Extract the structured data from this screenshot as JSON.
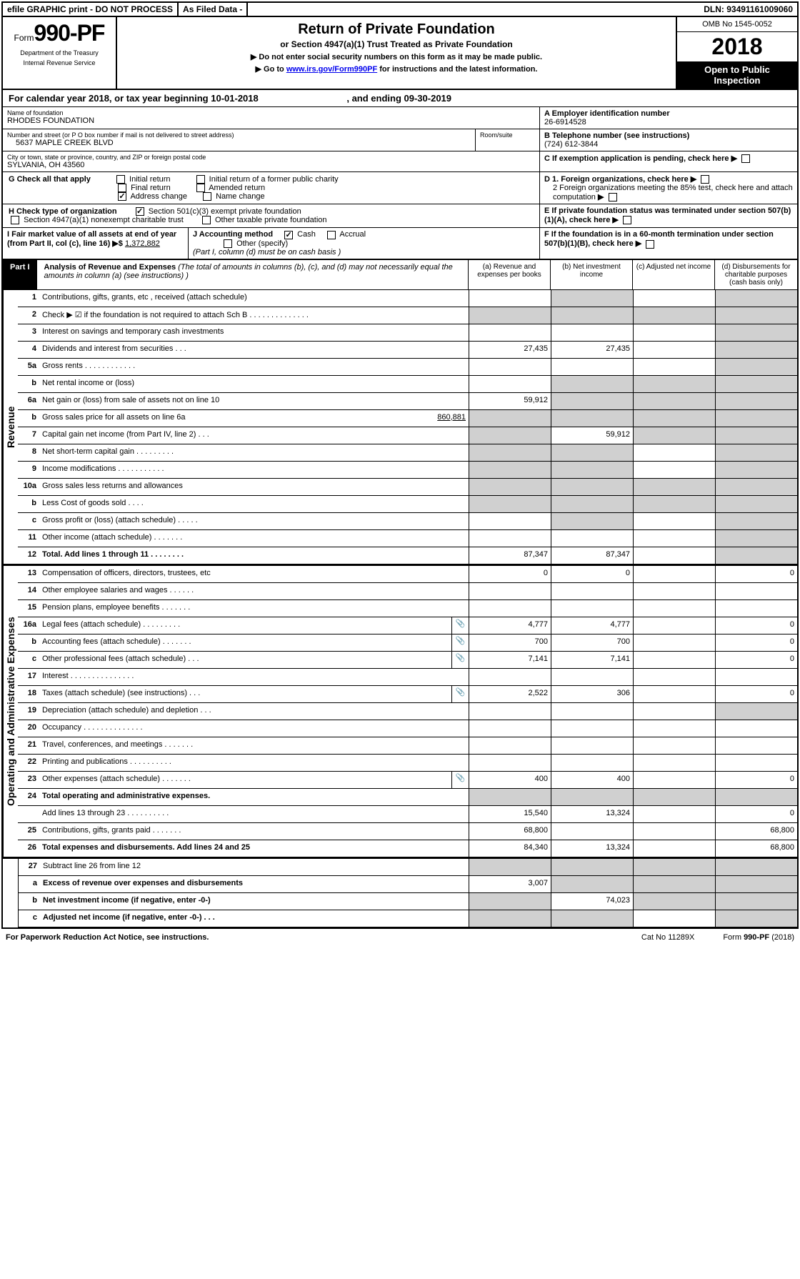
{
  "topbar": {
    "efile": "efile GRAPHIC print - DO NOT PROCESS",
    "asfiled": "As Filed Data -",
    "dln_label": "DLN:",
    "dln": "93491161009060"
  },
  "header": {
    "form_prefix": "Form",
    "form_no": "990-PF",
    "dept1": "Department of the Treasury",
    "dept2": "Internal Revenue Service",
    "title": "Return of Private Foundation",
    "subtitle": "or Section 4947(a)(1) Trust Treated as Private Foundation",
    "warn1": "▶ Do not enter social security numbers on this form as it may be made public.",
    "warn2_pre": "▶ Go to ",
    "warn2_link": "www.irs.gov/Form990PF",
    "warn2_post": " for instructions and the latest information.",
    "omb": "OMB No 1545-0052",
    "year": "2018",
    "opentag": "Open to Public Inspection"
  },
  "calyear": {
    "text_pre": "For calendar year 2018, or tax year beginning ",
    "begin": "10-01-2018",
    "mid": " , and ending ",
    "end": "09-30-2019"
  },
  "id": {
    "name_label": "Name of foundation",
    "name": "RHODES FOUNDATION",
    "addr_label": "Number and street (or P O  box number if mail is not delivered to street address)",
    "addr": "5637 MAPLE CREEK BLVD",
    "room_label": "Room/suite",
    "city_label": "City or town, state or province, country, and ZIP or foreign postal code",
    "city": "SYLVANIA, OH  43560",
    "A_label": "A Employer identification number",
    "A": "26-6914528",
    "B_label": "B Telephone number (see instructions)",
    "B": "(724) 612-3844",
    "C_label": "C If exemption application is pending, check here"
  },
  "G": {
    "label": "G Check all that apply",
    "opts": [
      "Initial return",
      "Initial return of a former public charity",
      "Final return",
      "Amended return",
      "Address change",
      "Name change"
    ],
    "checked": [
      false,
      false,
      false,
      false,
      true,
      false
    ]
  },
  "H": {
    "label": "H Check type of organization",
    "o1": "Section 501(c)(3) exempt private foundation",
    "o2": "Section 4947(a)(1) nonexempt charitable trust",
    "o3": "Other taxable private foundation",
    "checked": [
      true,
      false,
      false
    ]
  },
  "I": {
    "label": "I Fair market value of all assets at end of year (from Part II, col  (c), line 16) ▶$",
    "value": "1,372,882"
  },
  "J": {
    "label": "J Accounting method",
    "cash": "Cash",
    "accrual": "Accrual",
    "other": "Other (specify)",
    "note": "(Part I, column (d) must be on cash basis )",
    "cash_checked": true
  },
  "D": {
    "d1": "D 1. Foreign organizations, check here",
    "d2": "2 Foreign organizations meeting the 85% test, check here and attach computation"
  },
  "E": "E  If private foundation status was terminated under section 507(b)(1)(A), check here",
  "F": "F  If the foundation is in a 60-month termination under section 507(b)(1)(B), check here",
  "part1": {
    "tag": "Part I",
    "title": "Analysis of Revenue and Expenses",
    "note": "(The total of amounts in columns (b), (c), and (d) may not necessarily equal the amounts in column (a) (see instructions) )",
    "col_a": "(a) Revenue and expenses per books",
    "col_b": "(b) Net investment income",
    "col_c": "(c) Adjusted net income",
    "col_d": "(d) Disbursements for charitable purposes (cash basis only)"
  },
  "revenue_label": "Revenue",
  "expenses_label": "Operating and Administrative Expenses",
  "lines": {
    "l1": {
      "n": "1",
      "d": "Contributions, gifts, grants, etc , received (attach schedule)"
    },
    "l2": {
      "n": "2",
      "d": "Check ▶ ☑ if the foundation is not required to attach Sch  B   .  .  .  .  .  .  .  .  .  .  .  .  .  ."
    },
    "l3": {
      "n": "3",
      "d": "Interest on savings and temporary cash investments"
    },
    "l4": {
      "n": "4",
      "d": "Dividends and interest from securities   .  .  .",
      "a": "27,435",
      "b": "27,435"
    },
    "l5a": {
      "n": "5a",
      "d": "Gross rents   .  .  .  .  .  .  .  .  .  .  .  ."
    },
    "l5b": {
      "n": "b",
      "d": "Net rental income or (loss)"
    },
    "l6a": {
      "n": "6a",
      "d": "Net gain or (loss) from sale of assets not on line 10",
      "a": "59,912"
    },
    "l6b": {
      "n": "b",
      "d": "Gross sales price for all assets on line 6a",
      "inline": "860,881"
    },
    "l7": {
      "n": "7",
      "d": "Capital gain net income (from Part IV, line 2)  .  .  .",
      "b": "59,912"
    },
    "l8": {
      "n": "8",
      "d": "Net short-term capital gain  .  .  .  .  .  .  .  .  ."
    },
    "l9": {
      "n": "9",
      "d": "Income modifications .  .  .  .  .  .  .  .  .  .  ."
    },
    "l10a": {
      "n": "10a",
      "d": "Gross sales less returns and allowances"
    },
    "l10b": {
      "n": "b",
      "d": "Less  Cost of goods sold  .  .  .  ."
    },
    "l10c": {
      "n": "c",
      "d": "Gross profit or (loss) (attach schedule)  .  .  .  .  ."
    },
    "l11": {
      "n": "11",
      "d": "Other income (attach schedule)   .  .  .  .  .  .  ."
    },
    "l12": {
      "n": "12",
      "d": "Total. Add lines 1 through 11  .  .  .  .  .  .  .  .",
      "a": "87,347",
      "b": "87,347",
      "bold": true
    },
    "l13": {
      "n": "13",
      "d": "Compensation of officers, directors, trustees, etc",
      "a": "0",
      "b": "0",
      "dd": "0"
    },
    "l14": {
      "n": "14",
      "d": "Other employee salaries and wages  .  .  .  .  .  ."
    },
    "l15": {
      "n": "15",
      "d": "Pension plans, employee benefits  .  .  .  .  .  .  ."
    },
    "l16a": {
      "n": "16a",
      "d": "Legal fees (attach schedule) .  .  .  .  .  .  .  .  .",
      "icon": true,
      "a": "4,777",
      "b": "4,777",
      "dd": "0"
    },
    "l16b": {
      "n": "b",
      "d": "Accounting fees (attach schedule)  .  .  .  .  .  .  .",
      "icon": true,
      "a": "700",
      "b": "700",
      "dd": "0"
    },
    "l16c": {
      "n": "c",
      "d": "Other professional fees (attach schedule)  .  .  .",
      "icon": true,
      "a": "7,141",
      "b": "7,141",
      "dd": "0"
    },
    "l17": {
      "n": "17",
      "d": "Interest  .  .  .  .  .  .  .  .  .  .  .  .  .  .  ."
    },
    "l18": {
      "n": "18",
      "d": "Taxes (attach schedule) (see instructions)   .  .  .",
      "icon": true,
      "a": "2,522",
      "b": "306",
      "dd": "0"
    },
    "l19": {
      "n": "19",
      "d": "Depreciation (attach schedule) and depletion  .  .  ."
    },
    "l20": {
      "n": "20",
      "d": "Occupancy  .  .  .  .  .  .  .  .  .  .  .  .  .  ."
    },
    "l21": {
      "n": "21",
      "d": "Travel, conferences, and meetings .  .  .  .  .  .  ."
    },
    "l22": {
      "n": "22",
      "d": "Printing and publications .  .  .  .  .  .  .  .  .  ."
    },
    "l23": {
      "n": "23",
      "d": "Other expenses (attach schedule) .  .  .  .  .  .  .",
      "icon": true,
      "a": "400",
      "b": "400",
      "dd": "0"
    },
    "l24": {
      "n": "24",
      "d": "Total operating and administrative expenses.",
      "bold": true
    },
    "l24b": {
      "n": "",
      "d": "Add lines 13 through 23  .  .  .  .  .  .  .  .  .  .",
      "a": "15,540",
      "b": "13,324",
      "dd": "0"
    },
    "l25": {
      "n": "25",
      "d": "Contributions, gifts, grants paid  .  .  .  .  .  .  .",
      "a": "68,800",
      "dd": "68,800"
    },
    "l26": {
      "n": "26",
      "d": "Total expenses and disbursements. Add lines 24 and 25",
      "a": "84,340",
      "b": "13,324",
      "dd": "68,800",
      "bold": true
    },
    "l27": {
      "n": "27",
      "d": "Subtract line 26 from line 12"
    },
    "l27a": {
      "n": "a",
      "d": "Excess of revenue over expenses and disbursements",
      "a": "3,007",
      "bold": true
    },
    "l27b": {
      "n": "b",
      "d": "Net investment income (if negative, enter -0-)",
      "b": "74,023",
      "bold": true
    },
    "l27c": {
      "n": "c",
      "d": "Adjusted net income (if negative, enter -0-)  .  .  .",
      "bold": true
    }
  },
  "footer": {
    "left": "For Paperwork Reduction Act Notice, see instructions.",
    "mid": "Cat  No  11289X",
    "right_pre": "Form ",
    "right_form": "990-PF",
    "right_post": " (2018)"
  }
}
